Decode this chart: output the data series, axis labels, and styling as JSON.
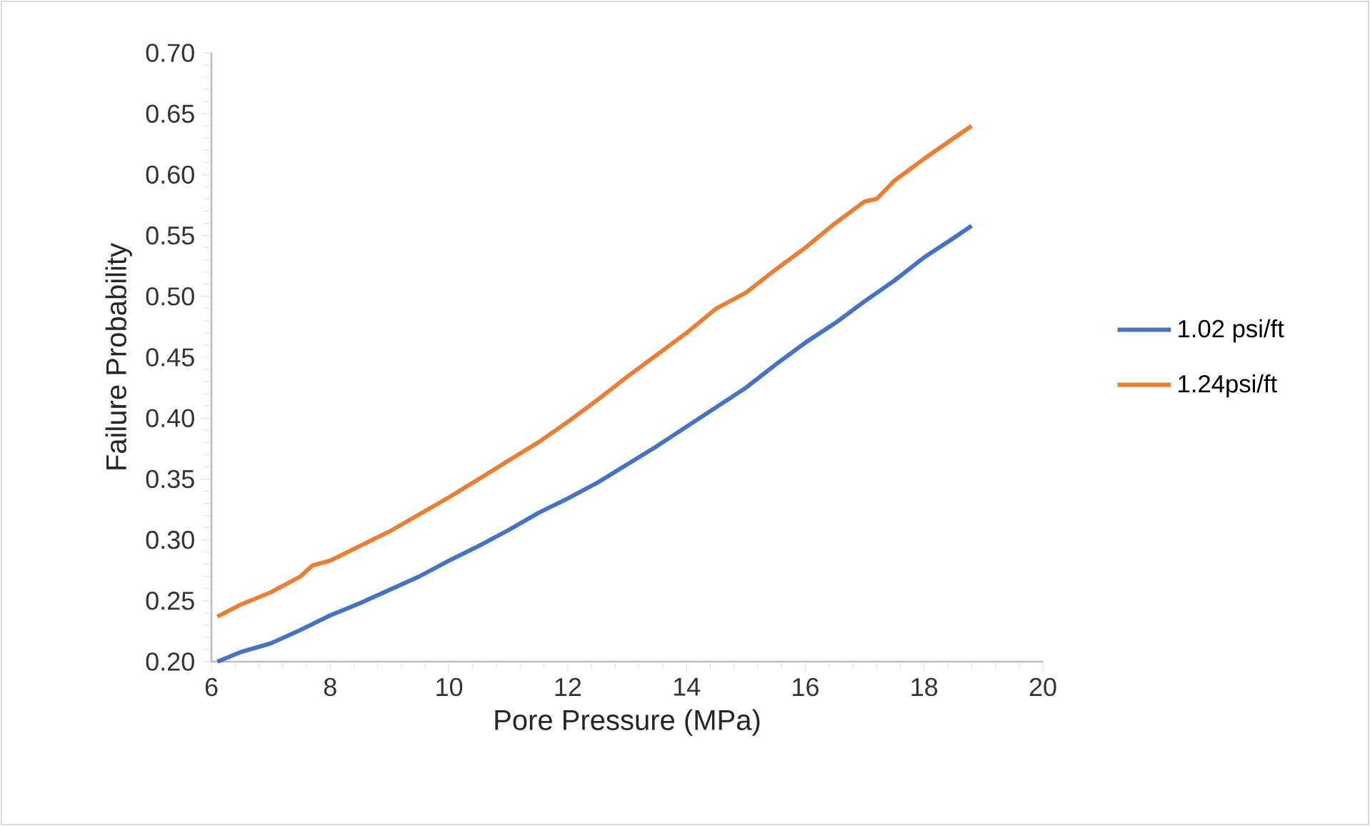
{
  "chart_data": {
    "type": "line",
    "xlabel": "Pore Pressure (MPa)",
    "ylabel": "Failure Probability",
    "xlim": [
      6,
      20
    ],
    "xticks": [
      6,
      8,
      10,
      12,
      14,
      16,
      18,
      20
    ],
    "ylim": [
      0.2,
      0.7
    ],
    "yticks": [
      {
        "value": 0.2,
        "label": "0.20"
      },
      {
        "value": 0.25,
        "label": "0.25"
      },
      {
        "value": 0.3,
        "label": "0.30"
      },
      {
        "value": 0.35,
        "label": "0.35"
      },
      {
        "value": 0.4,
        "label": "0.40"
      },
      {
        "value": 0.45,
        "label": "0.45"
      },
      {
        "value": 0.5,
        "label": "0.50"
      },
      {
        "value": 0.55,
        "label": "0.55"
      },
      {
        "value": 0.6,
        "label": "0.60"
      },
      {
        "value": 0.65,
        "label": "0.65"
      },
      {
        "value": 0.7,
        "label": "0.70"
      }
    ],
    "grid": false,
    "legend": "right",
    "marker": "none",
    "line_style": "solid",
    "series": [
      {
        "name": "1.02 psi/ft",
        "color": "#4472c4",
        "x": [
          6.1,
          6.5,
          7,
          7.5,
          8,
          8.5,
          9,
          9.5,
          10,
          10.5,
          11,
          11.5,
          12,
          12.5,
          13,
          13.5,
          14,
          14.5,
          15,
          15.5,
          16,
          16.5,
          17,
          17.5,
          18,
          18.5,
          18.8
        ],
        "values": [
          0.2,
          0.208,
          0.215,
          0.226,
          0.238,
          0.248,
          0.259,
          0.27,
          0.283,
          0.295,
          0.308,
          0.322,
          0.334,
          0.347,
          0.362,
          0.377,
          0.393,
          0.409,
          0.425,
          0.444,
          0.462,
          0.478,
          0.496,
          0.513,
          0.532,
          0.548,
          0.558
        ]
      },
      {
        "name": "1.24psi/ft",
        "color": "#ed7d31",
        "x": [
          6.1,
          6.5,
          7,
          7.5,
          7.7,
          8,
          8.5,
          9,
          9.5,
          10,
          10.5,
          11,
          11.5,
          12,
          12.5,
          13,
          13.5,
          14,
          14.5,
          15,
          15.5,
          16,
          16.5,
          17,
          17.2,
          17.5,
          18,
          18.5,
          18.8
        ],
        "values": [
          0.237,
          0.247,
          0.257,
          0.27,
          0.279,
          0.283,
          0.295,
          0.307,
          0.321,
          0.335,
          0.35,
          0.365,
          0.38,
          0.397,
          0.415,
          0.434,
          0.452,
          0.47,
          0.49,
          0.503,
          0.522,
          0.54,
          0.56,
          0.578,
          0.58,
          0.595,
          0.613,
          0.63,
          0.64
        ]
      }
    ]
  }
}
